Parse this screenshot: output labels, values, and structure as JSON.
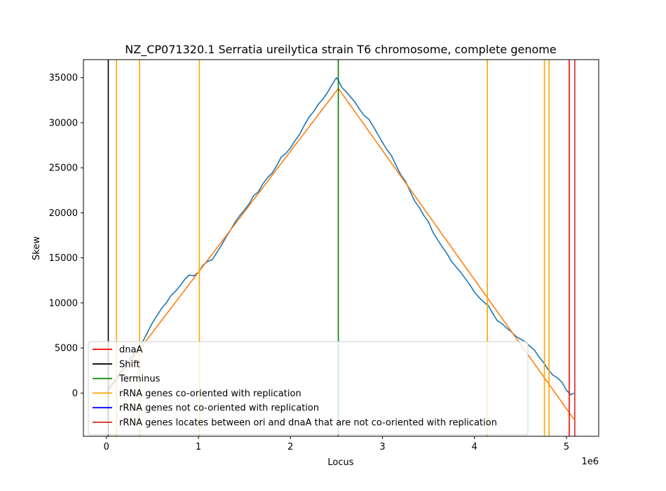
{
  "chart_data": {
    "type": "line",
    "title": "NZ_CP071320.1 Serratia ureilytica strain T6 chromosome, complete genome",
    "xlabel": "Locus",
    "ylabel": "Skew",
    "x_offset_label": "1e6",
    "xlim": [
      -250000,
      5350000
    ],
    "ylim": [
      -4800,
      37000
    ],
    "x_ticks": [
      0,
      1000000,
      2000000,
      3000000,
      4000000,
      5000000
    ],
    "x_tick_labels": [
      "0",
      "1",
      "2",
      "3",
      "4",
      "5"
    ],
    "y_ticks": [
      0,
      5000,
      10000,
      15000,
      20000,
      25000,
      30000,
      35000
    ],
    "y_tick_labels": [
      "0",
      "5000",
      "10000",
      "15000",
      "20000",
      "25000",
      "30000",
      "35000"
    ],
    "grid": false,
    "legend_position": "lower-left",
    "series": [
      {
        "color": "#1f77b4",
        "x": [
          0,
          50000,
          100000,
          150000,
          200000,
          250000,
          300000,
          350000,
          400000,
          450000,
          500000,
          550000,
          600000,
          650000,
          700000,
          750000,
          800000,
          850000,
          900000,
          950000,
          1000000,
          1050000,
          1100000,
          1150000,
          1200000,
          1250000,
          1300000,
          1350000,
          1400000,
          1450000,
          1500000,
          1550000,
          1600000,
          1650000,
          1700000,
          1750000,
          1800000,
          1850000,
          1900000,
          1950000,
          2000000,
          2050000,
          2100000,
          2150000,
          2200000,
          2250000,
          2300000,
          2350000,
          2400000,
          2450000,
          2500000,
          2530000,
          2560000,
          2600000,
          2650000,
          2700000,
          2750000,
          2800000,
          2850000,
          2900000,
          2950000,
          3000000,
          3050000,
          3100000,
          3150000,
          3200000,
          3250000,
          3300000,
          3350000,
          3400000,
          3450000,
          3500000,
          3550000,
          3600000,
          3650000,
          3700000,
          3750000,
          3800000,
          3850000,
          3900000,
          3950000,
          4000000,
          4050000,
          4100000,
          4150000,
          4200000,
          4250000,
          4300000,
          4350000,
          4400000,
          4450000,
          4500000,
          4550000,
          4600000,
          4650000,
          4700000,
          4750000,
          4800000,
          4850000,
          4900000,
          4950000,
          5000000,
          5050000,
          5080000
        ],
        "y": [
          0,
          900,
          1500,
          2300,
          3000,
          3700,
          4300,
          5200,
          5800,
          6800,
          7800,
          8600,
          9400,
          10000,
          10800,
          11300,
          11900,
          12600,
          13100,
          13000,
          13400,
          14200,
          14600,
          14800,
          15600,
          16400,
          17300,
          18100,
          19000,
          19700,
          20300,
          21000,
          21900,
          22300,
          23200,
          23900,
          24400,
          25200,
          26200,
          26600,
          27200,
          28000,
          28700,
          29700,
          30600,
          31200,
          32000,
          32600,
          33300,
          34200,
          35000,
          34500,
          33900,
          33500,
          32900,
          32300,
          31500,
          30800,
          30400,
          29600,
          28700,
          27800,
          27000,
          26300,
          25200,
          24200,
          23500,
          22400,
          21300,
          20600,
          19700,
          19000,
          17800,
          17000,
          16200,
          15500,
          14600,
          14000,
          13400,
          12700,
          12000,
          11200,
          10600,
          10100,
          9700,
          8800,
          8000,
          7700,
          7200,
          6800,
          6300,
          6000,
          5700,
          5200,
          4800,
          4000,
          3400,
          2600,
          2000,
          1700,
          1200,
          300,
          -200,
          0
        ]
      },
      {
        "color": "#ff7f0e",
        "x": [
          0,
          2520000,
          5080000
        ],
        "y": [
          0,
          33800,
          -2900
        ]
      }
    ],
    "vlines": [
      {
        "x": 20000,
        "color": "#000000"
      },
      {
        "x": 110000,
        "color": "#ffa500"
      },
      {
        "x": 360000,
        "color": "#ffa500"
      },
      {
        "x": 1010000,
        "color": "#ffa500"
      },
      {
        "x": 2520000,
        "color": "#008000"
      },
      {
        "x": 4140000,
        "color": "#ffa500"
      },
      {
        "x": 4760000,
        "color": "#ffa500"
      },
      {
        "x": 4810000,
        "color": "#ffa500"
      },
      {
        "x": 5030000,
        "color": "#ff0000"
      },
      {
        "x": 5090000,
        "color": "#d62728"
      }
    ],
    "legend": [
      {
        "label": "dnaA",
        "color": "#ff0000"
      },
      {
        "label": "Shift",
        "color": "#000000"
      },
      {
        "label": "Terminus",
        "color": "#008000"
      },
      {
        "label": "rRNA genes co-oriented with replication",
        "color": "#ffa500"
      },
      {
        "label": "rRNA genes not co-oriented with replication",
        "color": "#0000ff"
      },
      {
        "label": "rRNA genes locates between ori and dnaA that are not co-oriented with replication",
        "color": "#d62728"
      }
    ]
  }
}
